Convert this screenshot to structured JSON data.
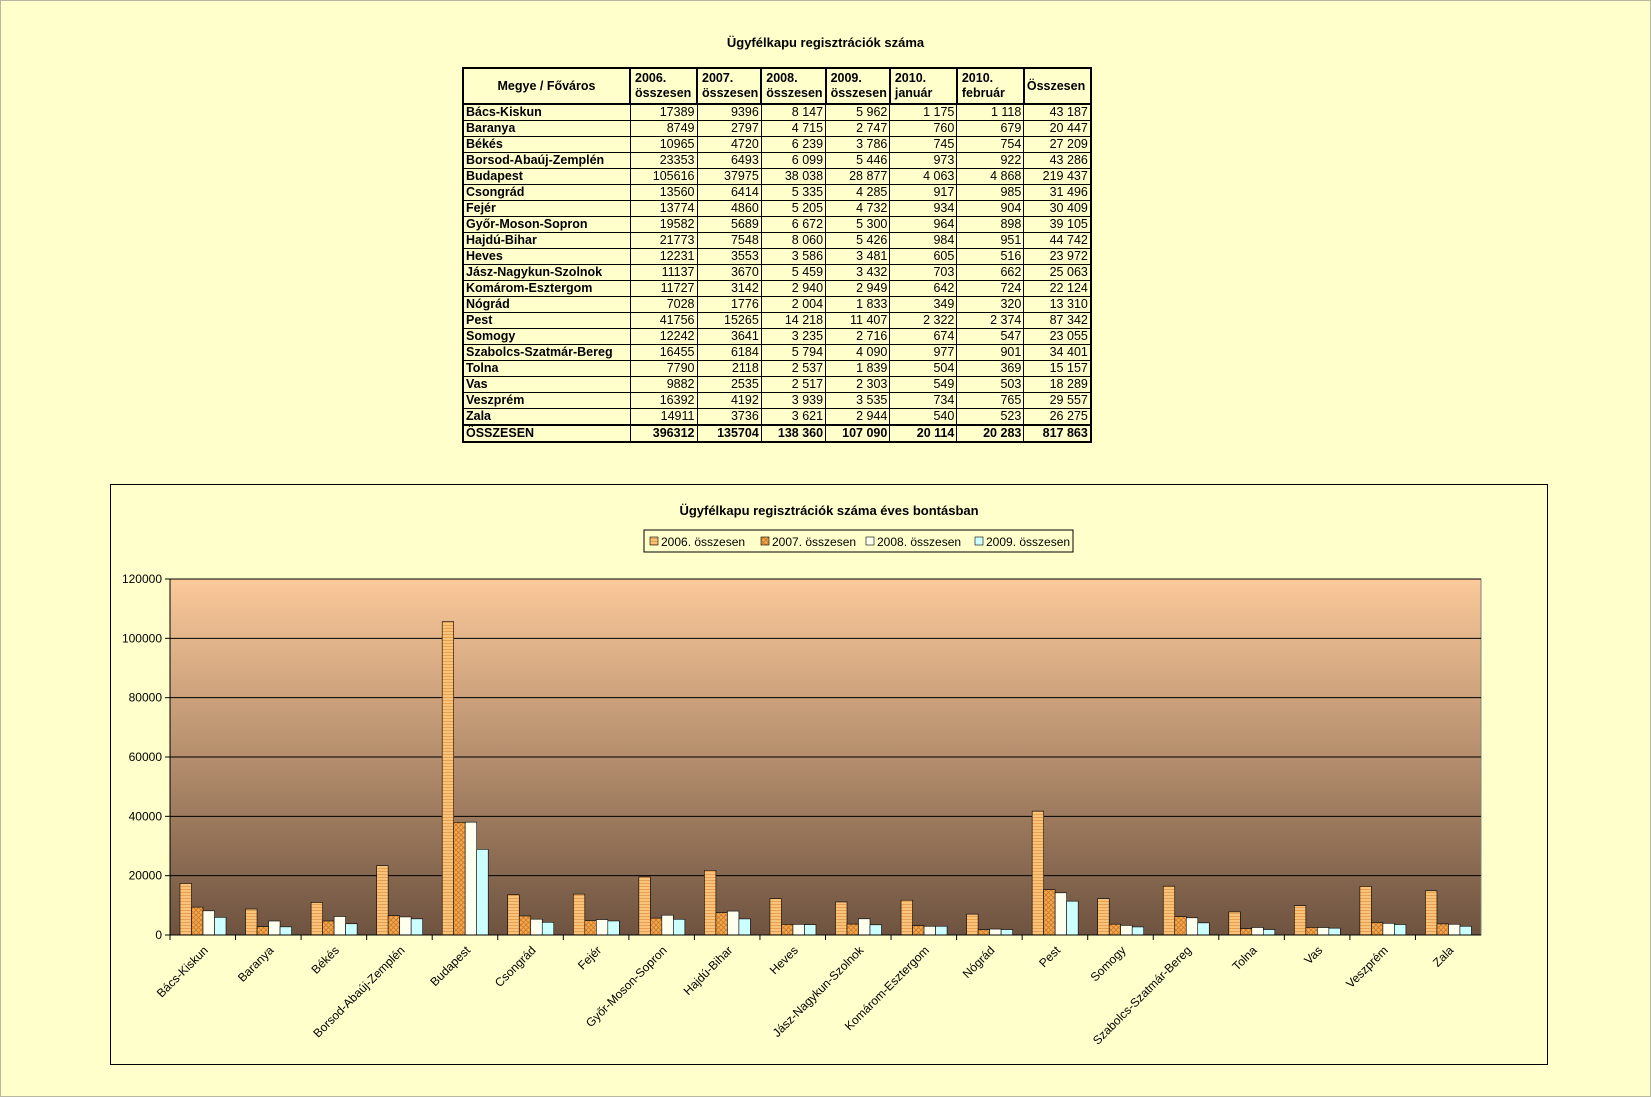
{
  "table": {
    "title": "Ügyfélkapu regisztrációk száma",
    "headers": [
      {
        "line1": "Megye / Főváros",
        "line2": ""
      },
      {
        "line1": "2006.",
        "line2": "összesen"
      },
      {
        "line1": "2007.",
        "line2": "összesen"
      },
      {
        "line1": "2008.",
        "line2": "összesen"
      },
      {
        "line1": "2009.",
        "line2": "összesen"
      },
      {
        "line1": "2010.",
        "line2": "január"
      },
      {
        "line1": "2010.",
        "line2": "február"
      },
      {
        "line1": "Összesen",
        "line2": ""
      }
    ],
    "rows": [
      [
        "Bács-Kiskun",
        "17389",
        "9396",
        "8 147",
        "5 962",
        "1 175",
        "1 118",
        "43 187"
      ],
      [
        "Baranya",
        "8749",
        "2797",
        "4 715",
        "2 747",
        "760",
        "679",
        "20 447"
      ],
      [
        "Békés",
        "10965",
        "4720",
        "6 239",
        "3 786",
        "745",
        "754",
        "27 209"
      ],
      [
        "Borsod-Abaúj-Zemplén",
        "23353",
        "6493",
        "6 099",
        "5 446",
        "973",
        "922",
        "43 286"
      ],
      [
        "Budapest",
        "105616",
        "37975",
        "38 038",
        "28 877",
        "4 063",
        "4 868",
        "219 437"
      ],
      [
        "Csongrád",
        "13560",
        "6414",
        "5 335",
        "4 285",
        "917",
        "985",
        "31 496"
      ],
      [
        "Fejér",
        "13774",
        "4860",
        "5 205",
        "4 732",
        "934",
        "904",
        "30 409"
      ],
      [
        "Győr-Moson-Sopron",
        "19582",
        "5689",
        "6 672",
        "5 300",
        "964",
        "898",
        "39 105"
      ],
      [
        "Hajdú-Bihar",
        "21773",
        "7548",
        "8 060",
        "5 426",
        "984",
        "951",
        "44 742"
      ],
      [
        "Heves",
        "12231",
        "3553",
        "3 586",
        "3 481",
        "605",
        "516",
        "23 972"
      ],
      [
        "Jász-Nagykun-Szolnok",
        "11137",
        "3670",
        "5 459",
        "3 432",
        "703",
        "662",
        "25 063"
      ],
      [
        "Komárom-Esztergom",
        "11727",
        "3142",
        "2 940",
        "2 949",
        "642",
        "724",
        "22 124"
      ],
      [
        "Nógrád",
        "7028",
        "1776",
        "2 004",
        "1 833",
        "349",
        "320",
        "13 310"
      ],
      [
        "Pest",
        "41756",
        "15265",
        "14 218",
        "11 407",
        "2 322",
        "2 374",
        "87 342"
      ],
      [
        "Somogy",
        "12242",
        "3641",
        "3 235",
        "2 716",
        "674",
        "547",
        "23 055"
      ],
      [
        "Szabolcs-Szatmár-Bereg",
        "16455",
        "6184",
        "5 794",
        "4 090",
        "977",
        "901",
        "34 401"
      ],
      [
        "Tolna",
        "7790",
        "2118",
        "2 537",
        "1 839",
        "504",
        "369",
        "15 157"
      ],
      [
        "Vas",
        "9882",
        "2535",
        "2 517",
        "2 303",
        "549",
        "503",
        "18 289"
      ],
      [
        "Veszprém",
        "16392",
        "4192",
        "3 939",
        "3 535",
        "734",
        "765",
        "29 557"
      ],
      [
        "Zala",
        "14911",
        "3736",
        "3 621",
        "2 944",
        "540",
        "523",
        "26 275"
      ]
    ],
    "total_row": [
      "ÖSSZESEN",
      "396312",
      "135704",
      "138 360",
      "107 090",
      "20 114",
      "20 283",
      "817 863"
    ]
  },
  "chart_data": {
    "type": "bar",
    "title": "Ügyfélkapu regisztrációk száma éves bontásban",
    "categories": [
      "Bács-Kiskun",
      "Baranya",
      "Békés",
      "Borsod-Abaúj-Zemplén",
      "Budapest",
      "Csongrád",
      "Fejér",
      "Győr-Moson-Sopron",
      "Hajdú-Bihar",
      "Heves",
      "Jász-Nagykun-Szolnok",
      "Komárom-Esztergom",
      "Nógrád",
      "Pest",
      "Somogy",
      "Szabolcs-Szatmár-Bereg",
      "Tolna",
      "Vas",
      "Veszprém",
      "Zala"
    ],
    "series": [
      {
        "name": "2006. összesen",
        "values": [
          17389,
          8749,
          10965,
          23353,
          105616,
          13560,
          13774,
          19582,
          21773,
          12231,
          11137,
          11727,
          7028,
          41756,
          12242,
          16455,
          7790,
          9882,
          16392,
          14911
        ]
      },
      {
        "name": "2007. összesen",
        "values": [
          9396,
          2797,
          4720,
          6493,
          37975,
          6414,
          4860,
          5689,
          7548,
          3553,
          3670,
          3142,
          1776,
          15265,
          3641,
          6184,
          2118,
          2535,
          4192,
          3736
        ]
      },
      {
        "name": "2008. összesen",
        "values": [
          8147,
          4715,
          6239,
          6099,
          38038,
          5335,
          5205,
          6672,
          8060,
          3586,
          5459,
          2940,
          2004,
          14218,
          3235,
          5794,
          2537,
          2517,
          3939,
          3621
        ]
      },
      {
        "name": "2009. összesen",
        "values": [
          5962,
          2747,
          3786,
          5446,
          28877,
          4285,
          4732,
          5300,
          5426,
          3481,
          3432,
          2949,
          1833,
          11407,
          2716,
          4090,
          1839,
          2303,
          3535,
          2944
        ]
      }
    ],
    "y_ticks": [
      "0",
      "20000",
      "40000",
      "60000",
      "80000",
      "100000",
      "120000"
    ],
    "ylim": [
      0,
      120000
    ],
    "grid": true,
    "legend_position": "top",
    "colors": {
      "series": [
        "#f9c47a",
        "#f5a94e",
        "#fffff0",
        "#ccffff"
      ],
      "plot_top": "#fbc99a",
      "plot_bottom": "#6e5340"
    }
  }
}
